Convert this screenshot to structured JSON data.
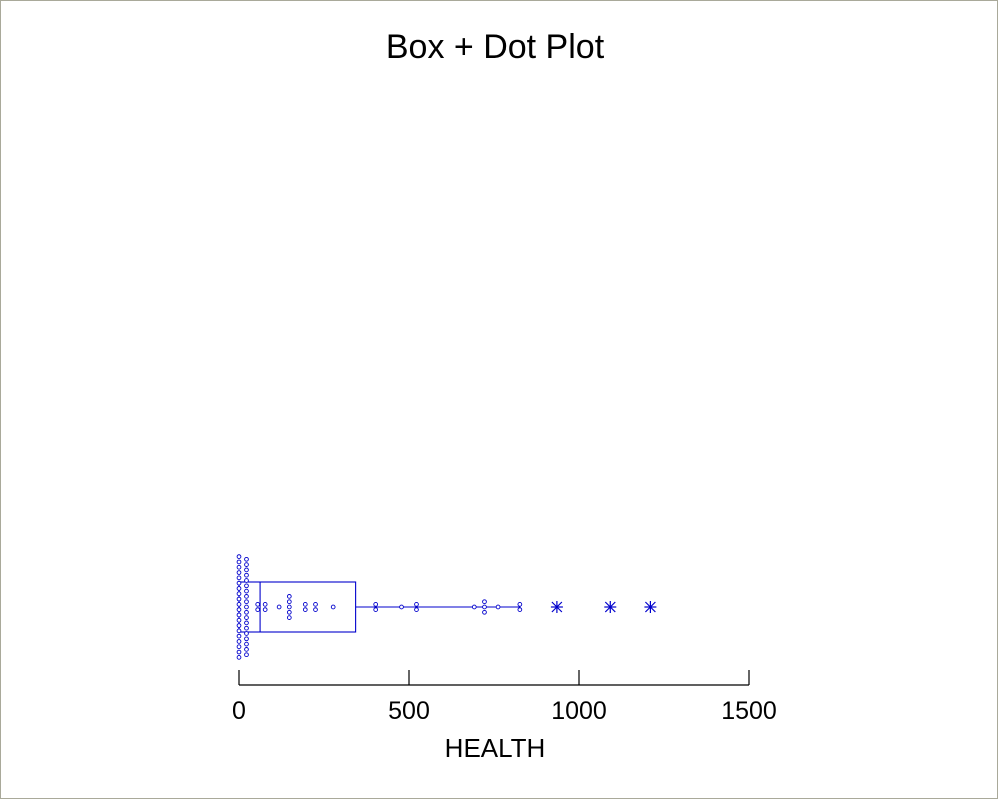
{
  "chart_data": {
    "type": "box_dot",
    "title": "Box + Dot Plot",
    "xlabel": "HEALTH",
    "xlim": [
      0,
      1500
    ],
    "ticks": [
      0,
      500,
      1000,
      1500
    ],
    "tick_labels": [
      "0",
      "500",
      "1000",
      "1500"
    ],
    "grid": false,
    "colors": {
      "marks": "#0000cc",
      "axis": "#000000"
    },
    "box": {
      "q1": 0,
      "median": 62,
      "q3": 343,
      "whisker_low": 0,
      "whisker_high": 826
    },
    "outliers": [
      935,
      1092,
      1210
    ],
    "dots": [
      0,
      0,
      0,
      0,
      0,
      0,
      0,
      0,
      0,
      0,
      0,
      0,
      0,
      0,
      0,
      0,
      0,
      0,
      0,
      0,
      22,
      22,
      22,
      22,
      22,
      22,
      22,
      22,
      22,
      22,
      22,
      22,
      22,
      22,
      22,
      22,
      22,
      22,
      22,
      55,
      55,
      77,
      77,
      118,
      148,
      148,
      148,
      148,
      148,
      195,
      195,
      225,
      225,
      277,
      402,
      402,
      478,
      522,
      522,
      692,
      722,
      722,
      722,
      762,
      826,
      826
    ]
  }
}
